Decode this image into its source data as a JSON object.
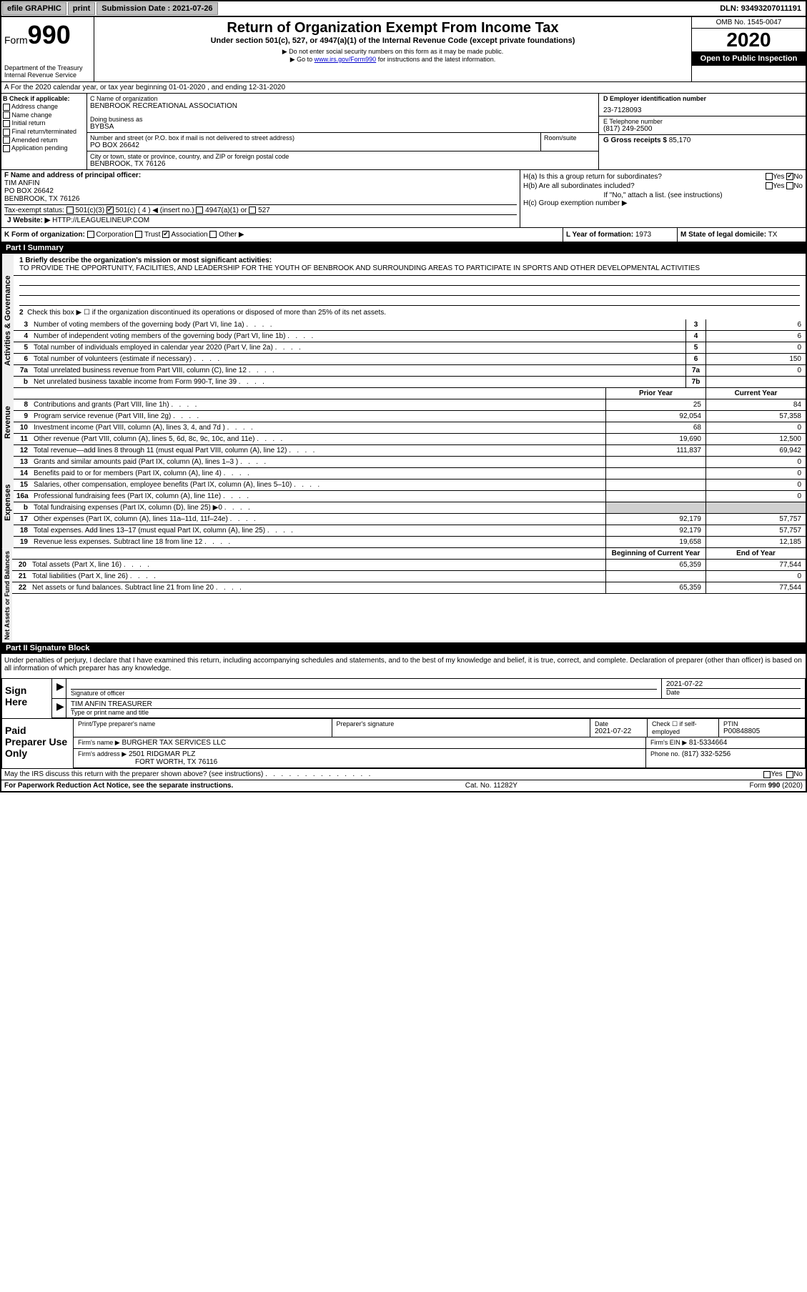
{
  "topbar": {
    "efile": "efile GRAPHIC",
    "print": "print",
    "submission_label": "Submission Date :",
    "submission_date": "2021-07-26",
    "dln_label": "DLN:",
    "dln": "93493207011191"
  },
  "header": {
    "form_label": "Form",
    "form_number": "990",
    "dept": "Department of the Treasury\nInternal Revenue Service",
    "title": "Return of Organization Exempt From Income Tax",
    "subtitle": "Under section 501(c), 527, or 4947(a)(1) of the Internal Revenue Code (except private foundations)",
    "note1": "▶ Do not enter social security numbers on this form as it may be made public.",
    "note2_pre": "▶ Go to ",
    "note2_link": "www.irs.gov/Form990",
    "note2_post": " for instructions and the latest information.",
    "omb": "OMB No. 1545-0047",
    "year": "2020",
    "inspection": "Open to Public Inspection"
  },
  "line_a": "A For the 2020 calendar year, or tax year beginning 01-01-2020    , and ending 12-31-2020",
  "col_b": {
    "label": "B Check if applicable:",
    "items": [
      "Address change",
      "Name change",
      "Initial return",
      "Final return/terminated",
      "Amended return",
      "Application pending"
    ]
  },
  "col_c": {
    "name_label": "C Name of organization",
    "name": "BENBROOK RECREATIONAL ASSOCIATION",
    "dba_label": "Doing business as",
    "dba": "BYBSA",
    "addr_label": "Number and street (or P.O. box if mail is not delivered to street address)",
    "addr": "PO BOX 26642",
    "room_label": "Room/suite",
    "city_label": "City or town, state or province, country, and ZIP or foreign postal code",
    "city": "BENBROOK, TX  76126"
  },
  "col_d": {
    "ein_label": "D Employer identification number",
    "ein": "23-7128093",
    "phone_label": "E Telephone number",
    "phone": "(817) 249-2500",
    "gross_label": "G Gross receipts $",
    "gross": "85,170"
  },
  "col_f": {
    "label": "F Name and address of principal officer:",
    "name": "TIM ANFIN",
    "addr1": "PO BOX 26642",
    "addr2": "BENBROOK, TX  76126"
  },
  "col_h": {
    "ha": "H(a)  Is this a group return for subordinates?",
    "hb": "H(b)  Are all subordinates included?",
    "hb_note": "If \"No,\" attach a list. (see instructions)",
    "hc": "H(c)  Group exemption number ▶",
    "yes": "Yes",
    "no": "No"
  },
  "tax_status": {
    "label": "Tax-exempt status:",
    "c3": "501(c)(3)",
    "c": "501(c) ( 4 ) ◀ (insert no.)",
    "a1": "4947(a)(1) or",
    "s527": "527"
  },
  "website": {
    "label": "J   Website: ▶",
    "value": "HTTP://LEAGUELINEUP.COM"
  },
  "row_k": {
    "label": "K Form of organization:",
    "opts": [
      "Corporation",
      "Trust",
      "Association",
      "Other ▶"
    ],
    "checked": 2,
    "l_label": "L Year of formation:",
    "l_val": "1973",
    "m_label": "M State of legal domicile:",
    "m_val": "TX"
  },
  "part1": {
    "header": "Part I      Summary",
    "line1_label": "1  Briefly describe the organization's mission or most significant activities:",
    "line1_text": "TO PROVIDE THE OPPORTUNITY, FACILITIES, AND LEADERSHIP FOR THE YOUTH OF BENBROOK AND SURROUNDING AREAS TO PARTICIPATE IN SPORTS AND OTHER DEVELOPMENTAL ACTIVITIES",
    "line2": "Check this box ▶ ☐  if the organization discontinued its operations or disposed of more than 25% of its net assets."
  },
  "governance": {
    "tab": "Activities & Governance",
    "rows": [
      {
        "n": "3",
        "d": "Number of voting members of the governing body (Part VI, line 1a)",
        "box": "3",
        "v": "6"
      },
      {
        "n": "4",
        "d": "Number of independent voting members of the governing body (Part VI, line 1b)",
        "box": "4",
        "v": "6"
      },
      {
        "n": "5",
        "d": "Total number of individuals employed in calendar year 2020 (Part V, line 2a)",
        "box": "5",
        "v": "0"
      },
      {
        "n": "6",
        "d": "Total number of volunteers (estimate if necessary)",
        "box": "6",
        "v": "150"
      },
      {
        "n": "7a",
        "d": "Total unrelated business revenue from Part VIII, column (C), line 12",
        "box": "7a",
        "v": "0"
      },
      {
        "n": "b",
        "d": "Net unrelated business taxable income from Form 990-T, line 39",
        "box": "7b",
        "v": ""
      }
    ]
  },
  "revenue": {
    "tab": "Revenue",
    "hdr": {
      "py": "Prior Year",
      "cy": "Current Year"
    },
    "rows": [
      {
        "n": "8",
        "d": "Contributions and grants (Part VIII, line 1h)",
        "py": "25",
        "cy": "84"
      },
      {
        "n": "9",
        "d": "Program service revenue (Part VIII, line 2g)",
        "py": "92,054",
        "cy": "57,358"
      },
      {
        "n": "10",
        "d": "Investment income (Part VIII, column (A), lines 3, 4, and 7d )",
        "py": "68",
        "cy": "0"
      },
      {
        "n": "11",
        "d": "Other revenue (Part VIII, column (A), lines 5, 6d, 8c, 9c, 10c, and 11e)",
        "py": "19,690",
        "cy": "12,500"
      },
      {
        "n": "12",
        "d": "Total revenue—add lines 8 through 11 (must equal Part VIII, column (A), line 12)",
        "py": "111,837",
        "cy": "69,942"
      }
    ]
  },
  "expenses": {
    "tab": "Expenses",
    "rows": [
      {
        "n": "13",
        "d": "Grants and similar amounts paid (Part IX, column (A), lines 1–3 )",
        "py": "",
        "cy": "0"
      },
      {
        "n": "14",
        "d": "Benefits paid to or for members (Part IX, column (A), line 4)",
        "py": "",
        "cy": "0"
      },
      {
        "n": "15",
        "d": "Salaries, other compensation, employee benefits (Part IX, column (A), lines 5–10)",
        "py": "",
        "cy": "0"
      },
      {
        "n": "16a",
        "d": "Professional fundraising fees (Part IX, column (A), line 11e)",
        "py": "",
        "cy": "0"
      },
      {
        "n": "b",
        "d": "Total fundraising expenses (Part IX, column (D), line 25) ▶0",
        "py": "shade",
        "cy": "shade"
      },
      {
        "n": "17",
        "d": "Other expenses (Part IX, column (A), lines 11a–11d, 11f–24e)",
        "py": "92,179",
        "cy": "57,757"
      },
      {
        "n": "18",
        "d": "Total expenses. Add lines 13–17 (must equal Part IX, column (A), line 25)",
        "py": "92,179",
        "cy": "57,757"
      },
      {
        "n": "19",
        "d": "Revenue less expenses. Subtract line 18 from line 12",
        "py": "19,658",
        "cy": "12,185"
      }
    ]
  },
  "netassets": {
    "tab": "Net Assets or Fund Balances",
    "hdr": {
      "py": "Beginning of Current Year",
      "cy": "End of Year"
    },
    "rows": [
      {
        "n": "20",
        "d": "Total assets (Part X, line 16)",
        "py": "65,359",
        "cy": "77,544"
      },
      {
        "n": "21",
        "d": "Total liabilities (Part X, line 26)",
        "py": "",
        "cy": "0"
      },
      {
        "n": "22",
        "d": "Net assets or fund balances. Subtract line 21 from line 20",
        "py": "65,359",
        "cy": "77,544"
      }
    ]
  },
  "part2": {
    "header": "Part II     Signature Block",
    "declaration": "Under penalties of perjury, I declare that I have examined this return, including accompanying schedules and statements, and to the best of my knowledge and belief, it is true, correct, and complete. Declaration of preparer (other than officer) is based on all information of which preparer has any knowledge."
  },
  "sign": {
    "label": "Sign Here",
    "sig_label": "Signature of officer",
    "date_label": "Date",
    "date": "2021-07-22",
    "name": "TIM ANFIN  TREASURER",
    "name_label": "Type or print name and title"
  },
  "paid": {
    "label": "Paid Preparer Use Only",
    "col1": "Print/Type preparer's name",
    "col2": "Preparer's signature",
    "col3_label": "Date",
    "col3": "2021-07-22",
    "col4": "Check ☐ if self-employed",
    "col5_label": "PTIN",
    "col5": "P00848805",
    "firm_label": "Firm's name    ▶",
    "firm": "BURGHER TAX SERVICES LLC",
    "ein_label": "Firm's EIN ▶",
    "ein": "81-5334664",
    "addr_label": "Firm's address ▶",
    "addr1": "2501 RIDGMAR PLZ",
    "addr2": "FORT WORTH, TX  76116",
    "phone_label": "Phone no.",
    "phone": "(817) 332-5256"
  },
  "discuss": {
    "text": "May the IRS discuss this return with the preparer shown above? (see instructions)",
    "yes": "Yes",
    "no": "No"
  },
  "footer": {
    "left": "For Paperwork Reduction Act Notice, see the separate instructions.",
    "mid": "Cat. No. 11282Y",
    "right": "Form 990 (2020)"
  }
}
